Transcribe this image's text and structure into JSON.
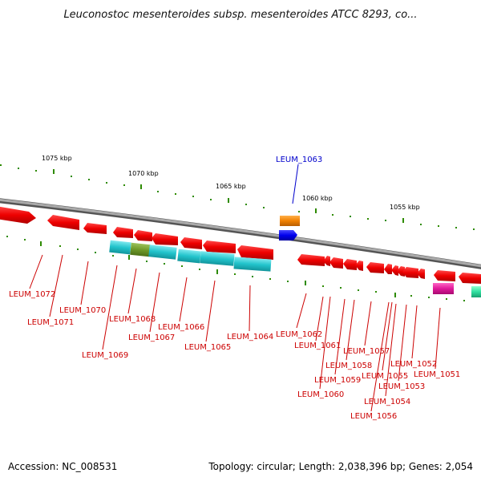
{
  "title": "Leuconostoc mesenteroides subsp. mesenteroides ATCC 8293, co...",
  "footer": {
    "accession": "Accession: NC_008531",
    "summary": "Topology: circular; Length: 2,038,396 bp; Genes: 2,054"
  },
  "colors": {
    "backbone": "#8c8c8c",
    "gene_red": "#ee0000",
    "label_red": "#cc0000",
    "label_blue": "#0000cc",
    "tick_green": "#2e8b00",
    "cyan": "#22c4cc",
    "olive": "#6f9a2a",
    "orange": "#f08000",
    "blue": "#0000ee",
    "magenta": "#e0199a",
    "mint": "#30e0a0"
  },
  "ticks": [
    {
      "label": "1075 kbp"
    },
    {
      "label": "1070 kbp"
    },
    {
      "label": "1065 kbp"
    },
    {
      "label": "1060 kbp"
    },
    {
      "label": "1055 kbp"
    }
  ],
  "gene_labels": [
    {
      "text": "LEUM_1063",
      "color": "blue"
    },
    {
      "text": "LEUM_1072",
      "color": "red"
    },
    {
      "text": "LEUM_1071",
      "color": "red"
    },
    {
      "text": "LEUM_1070",
      "color": "red"
    },
    {
      "text": "LEUM_1069",
      "color": "red"
    },
    {
      "text": "LEUM_1068",
      "color": "red"
    },
    {
      "text": "LEUM_1067",
      "color": "red"
    },
    {
      "text": "LEUM_1066",
      "color": "red"
    },
    {
      "text": "LEUM_1065",
      "color": "red"
    },
    {
      "text": "LEUM_1064",
      "color": "red"
    },
    {
      "text": "LEUM_1062",
      "color": "red"
    },
    {
      "text": "LEUM_1061",
      "color": "red"
    },
    {
      "text": "LEUM_1060",
      "color": "red"
    },
    {
      "text": "LEUM_1059",
      "color": "red"
    },
    {
      "text": "LEUM_1058",
      "color": "red"
    },
    {
      "text": "LEUM_1057",
      "color": "red"
    },
    {
      "text": "LEUM_1056",
      "color": "red"
    },
    {
      "text": "LEUM_1055",
      "color": "red"
    },
    {
      "text": "LEUM_1054",
      "color": "red"
    },
    {
      "text": "LEUM_1053",
      "color": "red"
    },
    {
      "text": "LEUM_1052",
      "color": "red"
    },
    {
      "text": "LEUM_1051",
      "color": "red"
    }
  ]
}
